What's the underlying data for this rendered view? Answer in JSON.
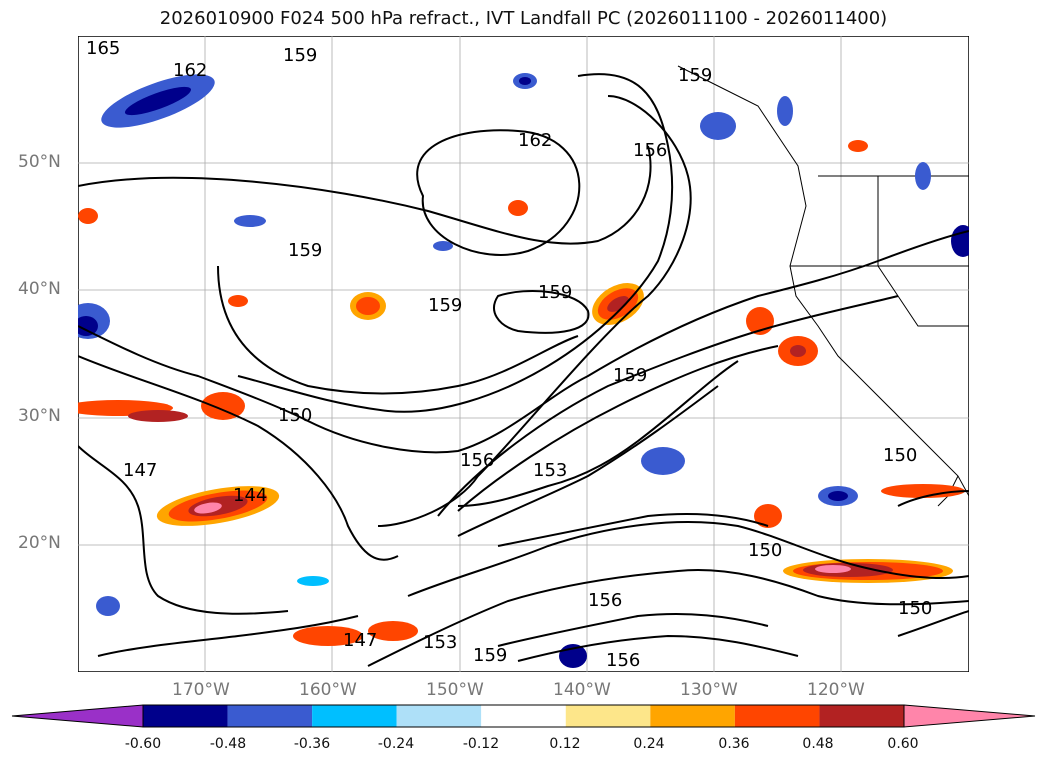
{
  "title": "2026010900 F024 500 hPa refract., IVT Landfall PC (2026011100 - 2026011400)",
  "map": {
    "lat_labels": [
      "50°N",
      "40°N",
      "30°N",
      "20°N"
    ],
    "lon_labels": [
      "170°W",
      "160°W",
      "150°W",
      "140°W",
      "130°W",
      "120°W"
    ],
    "contour_labels": [
      "165",
      "162",
      "159",
      "159",
      "162",
      "156",
      "159",
      "159",
      "159",
      "159",
      "150",
      "147",
      "144",
      "156",
      "153",
      "150",
      "150",
      "150",
      "156",
      "159",
      "153",
      "147",
      "156"
    ]
  },
  "colorbar": {
    "colors": [
      "#9a30c8",
      "#00008b",
      "#3a5bd0",
      "#00bfff",
      "#aee0f8",
      "#ffffff",
      "#fde68a",
      "#ffa500",
      "#ff4500",
      "#b22222",
      "#ff85aa"
    ],
    "ticks": [
      "-0.60",
      "-0.48",
      "-0.36",
      "-0.24",
      "-0.12",
      "0.12",
      "0.24",
      "0.36",
      "0.48",
      "0.60"
    ]
  }
}
